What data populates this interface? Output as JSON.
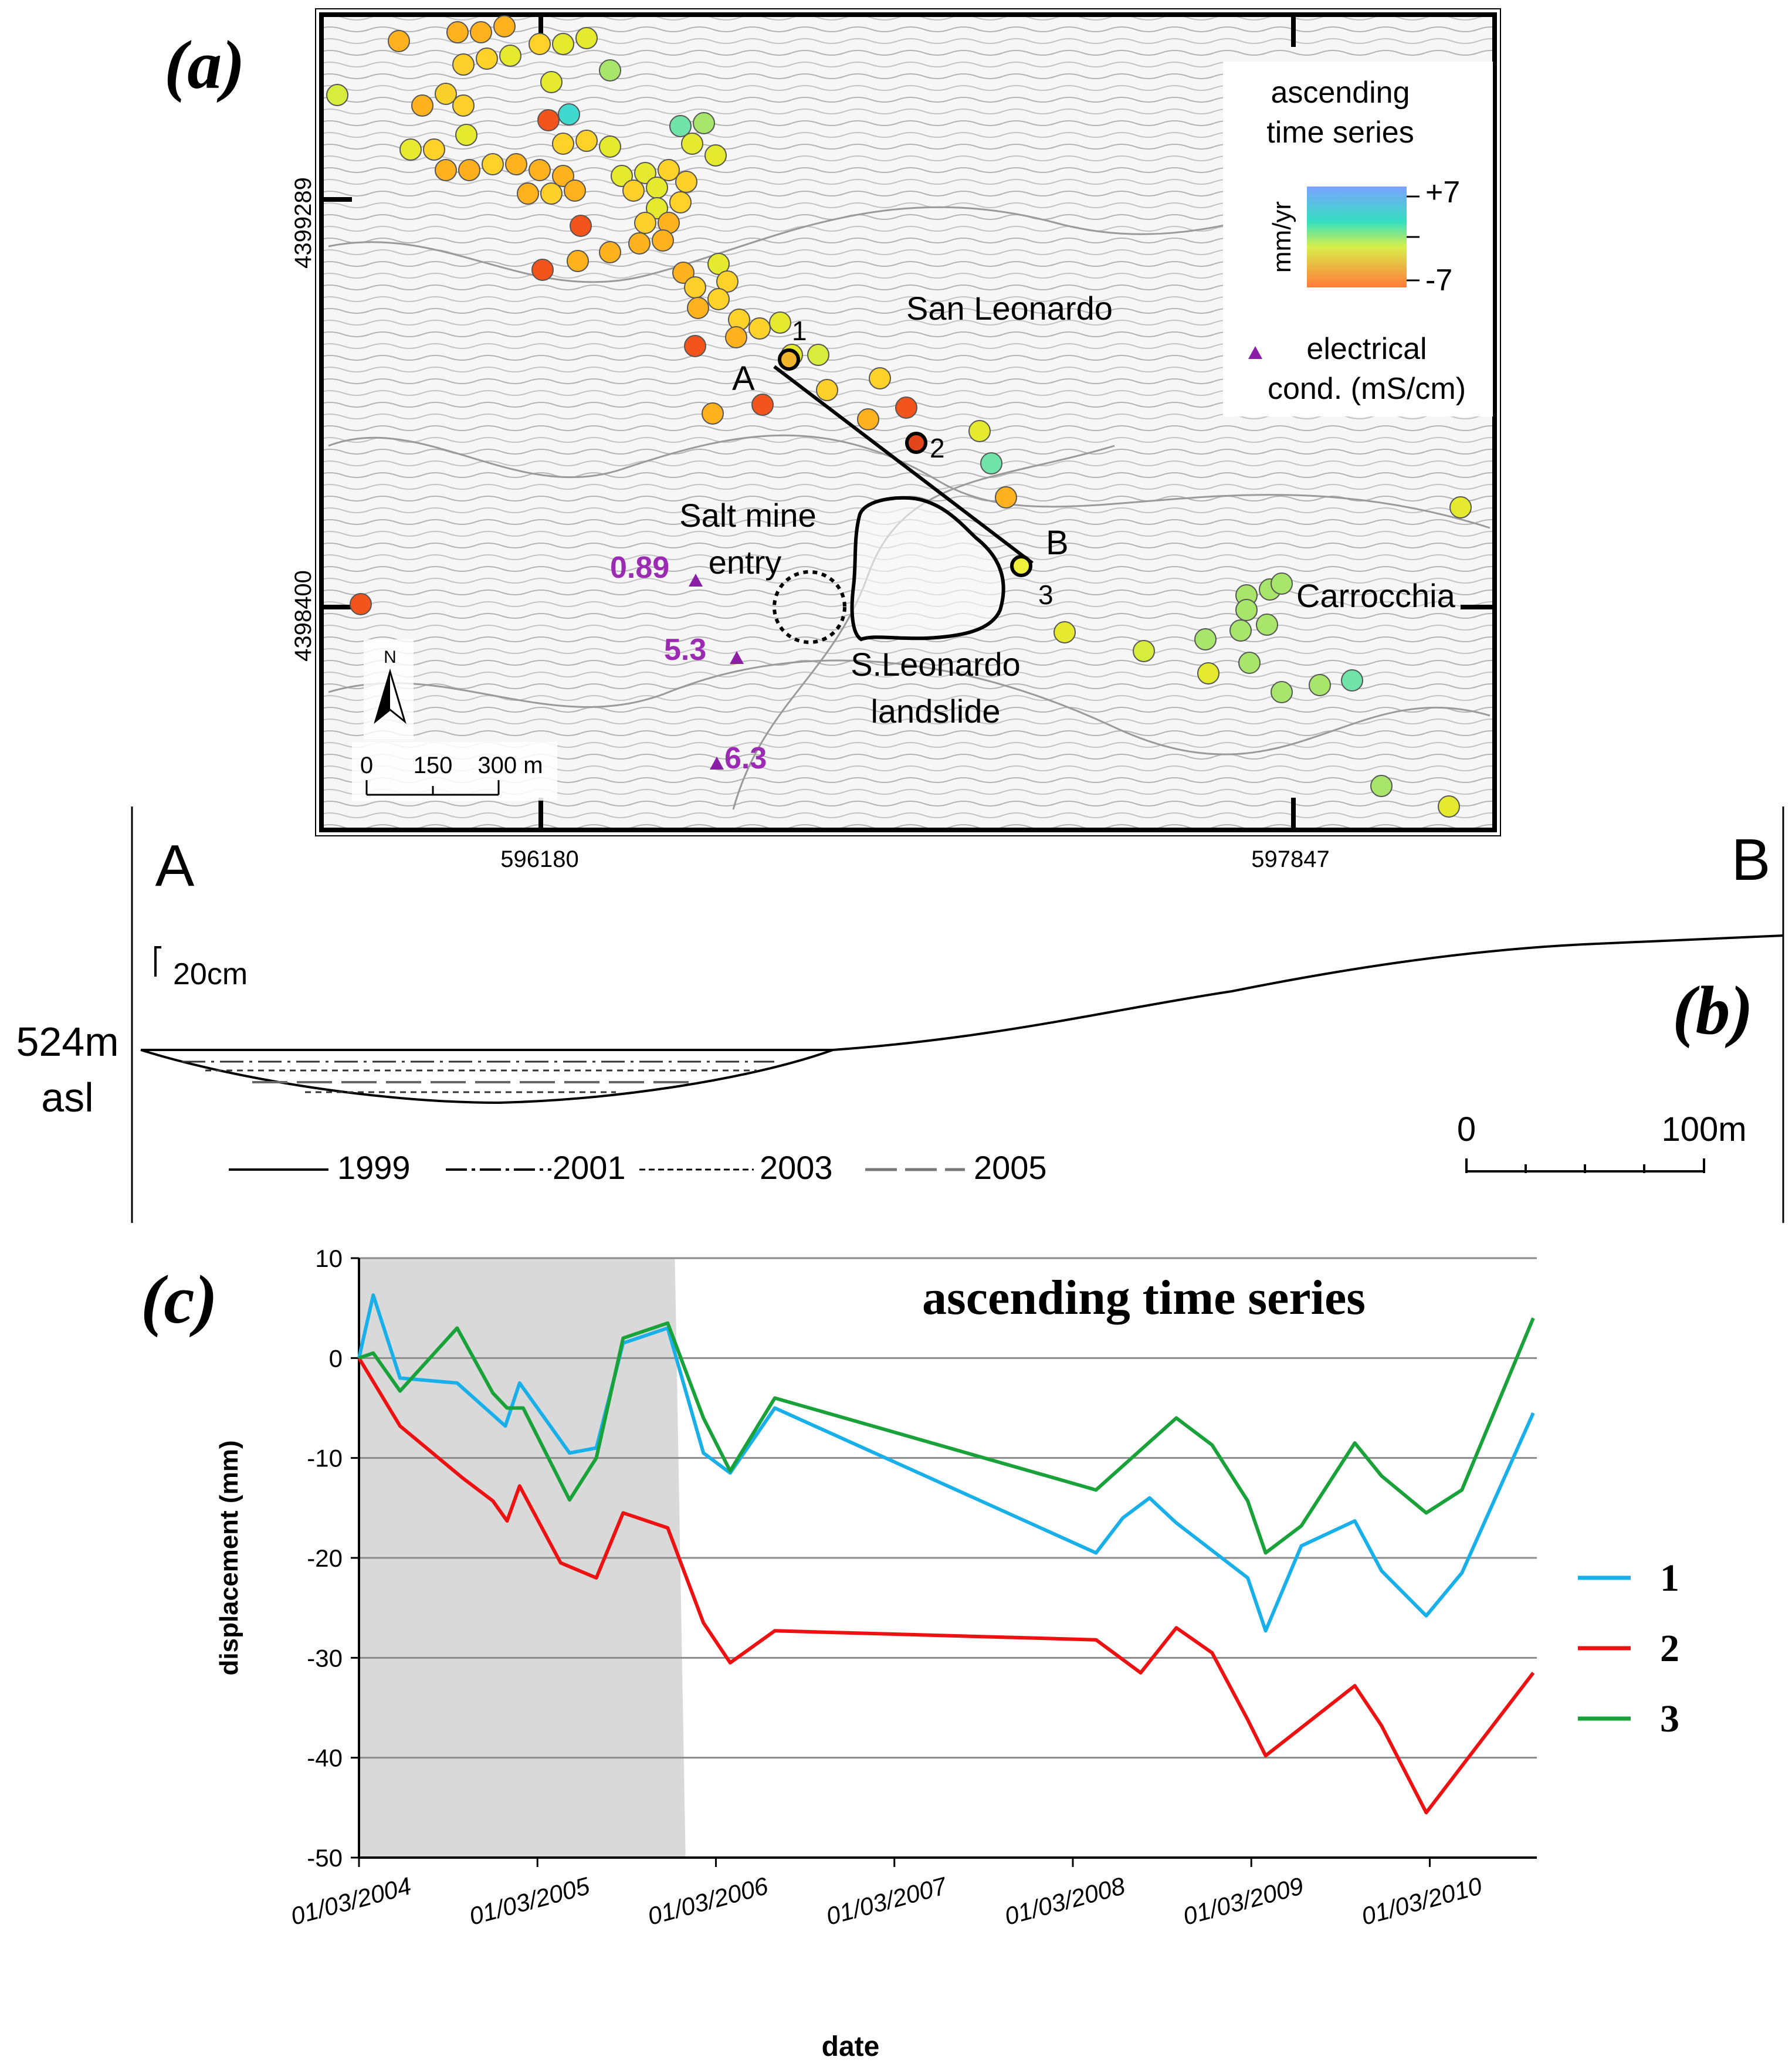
{
  "panel_a": {
    "label": "(a)",
    "legend": {
      "title_line1": "ascending",
      "title_line2": "time series",
      "unit": "mm/yr",
      "max_label": "+7",
      "min_label": "-7",
      "marker_label_line1": "electrical",
      "marker_label_line2": "cond. (mS/cm)",
      "colors": {
        "high": "#7aa2ff",
        "mid": "#35e0c0",
        "midlow": "#d8ef4a",
        "low": "#ff7a3a"
      }
    },
    "places": {
      "san_leonardo": "San Leonardo",
      "carrocchia": "Carrocchia",
      "salt_mine_line1": "Salt mine",
      "salt_mine_line2": "entry",
      "landslide_line1": "S.Leonardo",
      "landslide_line2": "landslide"
    },
    "conductivity_values": [
      "0.89",
      "5.3",
      "6.3"
    ],
    "points": {
      "pA": "A",
      "pB": "B",
      "p1": "1",
      "p2": "2",
      "p3": "3"
    },
    "coords": {
      "y_top": "4399289",
      "y_bottom": "4398400",
      "x_left": "596180",
      "x_right": "597847"
    },
    "north_label": "N",
    "scale": {
      "zero": "0",
      "mid": "150",
      "end": "300 m"
    }
  },
  "panel_b": {
    "label": "(b)",
    "left_label": "A",
    "right_label": "B",
    "scale_vertical": "20cm",
    "elevation_line1": "524m",
    "elevation_line2": "asl",
    "legend_years": [
      "1999",
      "2001",
      "2003",
      "2005"
    ],
    "scale_zero": "0",
    "scale_end": "100m"
  },
  "panel_c": {
    "label": "(c)",
    "title": "ascending time series"
  },
  "chart_data": {
    "type": "line",
    "title": "ascending time series",
    "xlabel": "date",
    "ylabel": "displacement (mm)",
    "ylim": [
      -50,
      10
    ],
    "yticks": [
      10,
      0,
      -10,
      -20,
      -30,
      -40,
      -50
    ],
    "x_ticks": [
      {
        "t": 0,
        "label": "01/03/2004"
      },
      {
        "t": 1,
        "label": "01/03/2005"
      },
      {
        "t": 2,
        "label": "01/03/2006"
      },
      {
        "t": 3,
        "label": "01/03/2007"
      },
      {
        "t": 4,
        "label": "01/03/2008"
      },
      {
        "t": 5,
        "label": "01/03/2009"
      },
      {
        "t": 6,
        "label": "01/03/2010"
      }
    ],
    "xlim": [
      0,
      6.6
    ],
    "shaded_period": {
      "t_start": 0,
      "t_end_top": 1.77,
      "t_end_bottom": 1.83
    },
    "series": [
      {
        "name": "1",
        "color": "#19b0ea",
        "t": [
          0,
          0.08,
          0.23,
          0.55,
          0.82,
          0.9,
          1.18,
          1.33,
          1.48,
          1.73,
          1.93,
          2.08,
          2.33,
          4.13,
          4.28,
          4.43,
          4.58,
          4.98,
          5.08,
          5.28,
          5.58,
          5.73,
          5.98,
          6.18,
          6.58
        ],
        "values": [
          0,
          6.3,
          -2,
          -2.5,
          -6.8,
          -2.5,
          -9.5,
          -9,
          1.5,
          3,
          -9.5,
          -11.5,
          -5,
          -19.5,
          -16,
          -14,
          -16.5,
          -22,
          -27.3,
          -18.8,
          -16.3,
          -21.3,
          -25.8,
          -21.5,
          -5.5
        ]
      },
      {
        "name": "2",
        "color": "#ee1111",
        "t": [
          0,
          0.23,
          0.58,
          0.75,
          0.83,
          0.9,
          1.13,
          1.33,
          1.48,
          1.73,
          1.93,
          2.08,
          2.33,
          4.13,
          4.38,
          4.58,
          4.78,
          4.98,
          5.08,
          5.28,
          5.58,
          5.73,
          5.98,
          6.58
        ],
        "values": [
          0,
          -6.8,
          -12,
          -14.3,
          -16.3,
          -12.8,
          -20.5,
          -22,
          -15.5,
          -17,
          -26.5,
          -30.5,
          -27.3,
          -28.2,
          -31.5,
          -27,
          -29.5,
          -36.2,
          -39.8,
          -37,
          -32.8,
          -36.8,
          -45.5,
          -31.5
        ]
      },
      {
        "name": "3",
        "color": "#1aa23a",
        "t": [
          0,
          0.08,
          0.23,
          0.55,
          0.75,
          0.83,
          0.92,
          1.18,
          1.33,
          1.48,
          1.73,
          1.93,
          2.08,
          2.33,
          4.13,
          4.58,
          4.78,
          4.98,
          5.08,
          5.28,
          5.58,
          5.73,
          5.98,
          6.18,
          6.58
        ],
        "values": [
          0,
          0.5,
          -3.3,
          3,
          -3.5,
          -5,
          -5,
          -14.2,
          -10,
          2,
          3.5,
          -6,
          -11.3,
          -4,
          -13.2,
          -6,
          -8.7,
          -14.3,
          -19.5,
          -16.8,
          -8.5,
          -11.8,
          -15.5,
          -13.2,
          4
        ]
      }
    ]
  }
}
